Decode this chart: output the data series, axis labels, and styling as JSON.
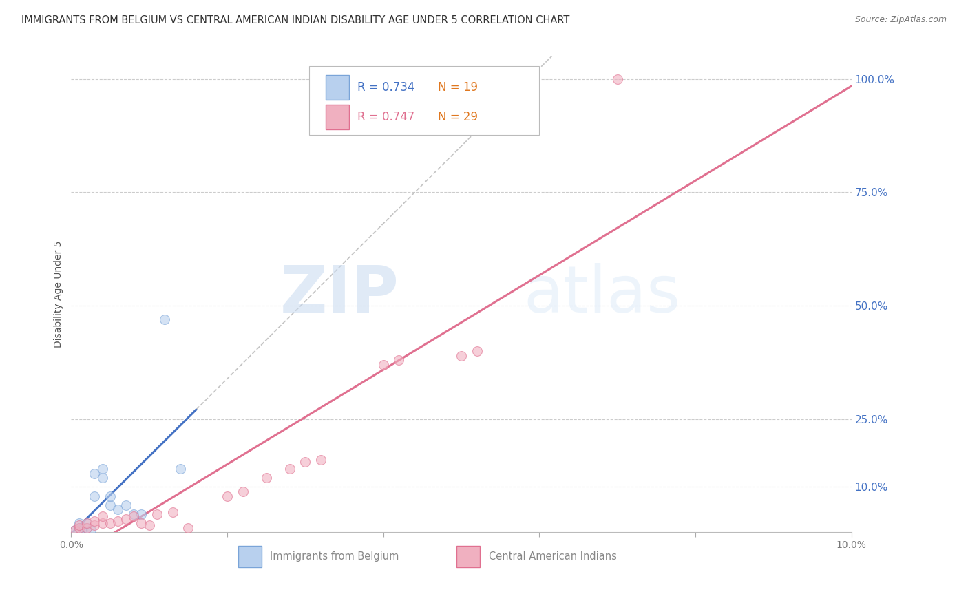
{
  "title": "IMMIGRANTS FROM BELGIUM VS CENTRAL AMERICAN INDIAN DISABILITY AGE UNDER 5 CORRELATION CHART",
  "source": "Source: ZipAtlas.com",
  "ylabel": "Disability Age Under 5",
  "xlim": [
    0,
    0.1
  ],
  "ylim": [
    0,
    1.05
  ],
  "xticks": [
    0.0,
    0.02,
    0.04,
    0.06,
    0.08,
    0.1
  ],
  "xticklabels": [
    "0.0%",
    "",
    "",
    "",
    "",
    "10.0%"
  ],
  "yticks_right": [
    1.0,
    0.75,
    0.5,
    0.25,
    0.1
  ],
  "ytick_right_labels": [
    "100.0%",
    "75.0%",
    "50.0%",
    "25.0%",
    "10.0%"
  ],
  "grid_color": "#cccccc",
  "background_color": "#ffffff",
  "watermark_zip": "ZIP",
  "watermark_atlas": "atlas",
  "legend_R_blue": "R = 0.734",
  "legend_N_blue": "N = 19",
  "legend_R_pink": "R = 0.747",
  "legend_N_pink": "N = 29",
  "blue_scatter_x": [
    0.0005,
    0.001,
    0.001,
    0.0015,
    0.002,
    0.002,
    0.0025,
    0.003,
    0.003,
    0.004,
    0.004,
    0.005,
    0.005,
    0.006,
    0.007,
    0.008,
    0.009,
    0.012,
    0.014
  ],
  "blue_scatter_y": [
    0.005,
    0.01,
    0.02,
    0.005,
    0.01,
    0.02,
    0.005,
    0.08,
    0.13,
    0.12,
    0.14,
    0.06,
    0.08,
    0.05,
    0.06,
    0.04,
    0.04,
    0.47,
    0.14
  ],
  "pink_scatter_x": [
    0.0005,
    0.001,
    0.001,
    0.002,
    0.002,
    0.003,
    0.003,
    0.004,
    0.004,
    0.005,
    0.006,
    0.007,
    0.008,
    0.009,
    0.01,
    0.011,
    0.013,
    0.015,
    0.02,
    0.022,
    0.025,
    0.028,
    0.03,
    0.032,
    0.04,
    0.042,
    0.05,
    0.052,
    0.07
  ],
  "pink_scatter_y": [
    0.005,
    0.01,
    0.015,
    0.01,
    0.02,
    0.015,
    0.025,
    0.02,
    0.035,
    0.02,
    0.025,
    0.03,
    0.035,
    0.02,
    0.015,
    0.04,
    0.045,
    0.01,
    0.08,
    0.09,
    0.12,
    0.14,
    0.155,
    0.16,
    0.37,
    0.38,
    0.39,
    0.4,
    1.0
  ],
  "blue_line_color": "#4472c4",
  "pink_line_color": "#e07090",
  "blue_scatter_facecolor": "#b8d0ee",
  "blue_scatter_edgecolor": "#7aa4d8",
  "pink_scatter_facecolor": "#f0b0c0",
  "pink_scatter_edgecolor": "#e07090",
  "scatter_size": 100,
  "scatter_alpha": 0.6,
  "title_fontsize": 10.5,
  "label_fontsize": 10,
  "tick_fontsize": 10,
  "right_tick_color": "#4472c4",
  "source_color": "#777777",
  "legend_text_blue": "#4472c4",
  "legend_text_orange": "#e07820",
  "legend_text_pink": "#e07090",
  "bottom_legend_color": "#888888"
}
